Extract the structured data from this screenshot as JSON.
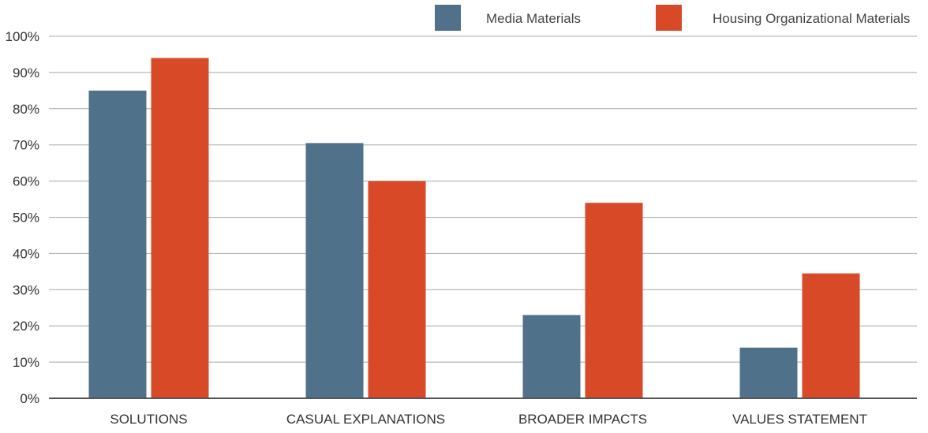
{
  "chart_data": {
    "type": "bar",
    "categories": [
      "SOLUTIONS",
      "CASUAL EXPLANATIONS",
      "BROADER IMPACTS",
      "VALUES STATEMENT"
    ],
    "series": [
      {
        "name": "Media Materials",
        "values": [
          85,
          70.5,
          23,
          14
        ],
        "color": "#4f7189"
      },
      {
        "name": "Housing Organizational Materials",
        "values": [
          94,
          60,
          54,
          34.5
        ],
        "color": "#d84a27"
      }
    ],
    "ylim": [
      0,
      100
    ],
    "y_ticks": [
      "0%",
      "10%",
      "20%",
      "30%",
      "40%",
      "50%",
      "60%",
      "70%",
      "80%",
      "90%",
      "100%"
    ],
    "grid": true,
    "legend_position": "top-right"
  }
}
